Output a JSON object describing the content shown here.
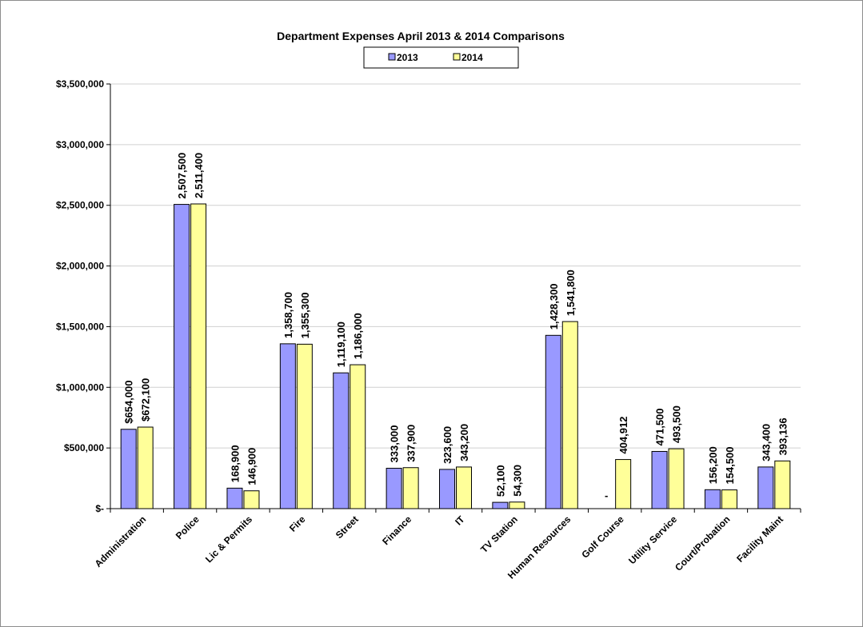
{
  "chart_data": {
    "type": "bar",
    "title": "Department Expenses April 2013 & 2014 Comparisons",
    "xlabel": "",
    "ylabel": "",
    "categories": [
      "Administration",
      "Police",
      "Lic & Permits",
      "Fire",
      "Street",
      "Finance",
      "IT",
      "TV Station",
      "Human Resources",
      "Golf Course",
      "Utility Service",
      "Court/Probation",
      "Facility Maint"
    ],
    "series": [
      {
        "name": "2013",
        "color": "#9999ff",
        "values": [
          654000,
          2507500,
          168900,
          1358700,
          1119100,
          333000,
          323600,
          52100,
          1428300,
          0,
          471500,
          156200,
          343400
        ],
        "labels": [
          "$654,000",
          "2,507,500",
          "168,900",
          "1,358,700",
          "1,119,100",
          "333,000",
          "323,600",
          "52,100",
          "1,428,300",
          "-",
          "471,500",
          "156,200",
          "343,400"
        ]
      },
      {
        "name": "2014",
        "color": "#ffff99",
        "values": [
          672100,
          2511400,
          146900,
          1355300,
          1186000,
          337900,
          343200,
          54300,
          1541800,
          404912,
          493500,
          154500,
          393136
        ],
        "labels": [
          "$672,100",
          "2,511,400",
          "146,900",
          "1,355,300",
          "1,186,000",
          "337,900",
          "343,200",
          "54,300",
          "1,541,800",
          "404,912",
          "493,500",
          "154,500",
          "393,136"
        ]
      }
    ],
    "ylim": [
      0,
      3500000
    ],
    "yticks": [
      0,
      500000,
      1000000,
      1500000,
      2000000,
      2500000,
      3000000,
      3500000
    ],
    "ytick_labels": [
      "$-",
      "$500,000",
      "$1,000,000",
      "$1,500,000",
      "$2,000,000",
      "$2,500,000",
      "$3,000,000",
      "$3,500,000"
    ],
    "grid": true,
    "legend_position": "top-center"
  }
}
